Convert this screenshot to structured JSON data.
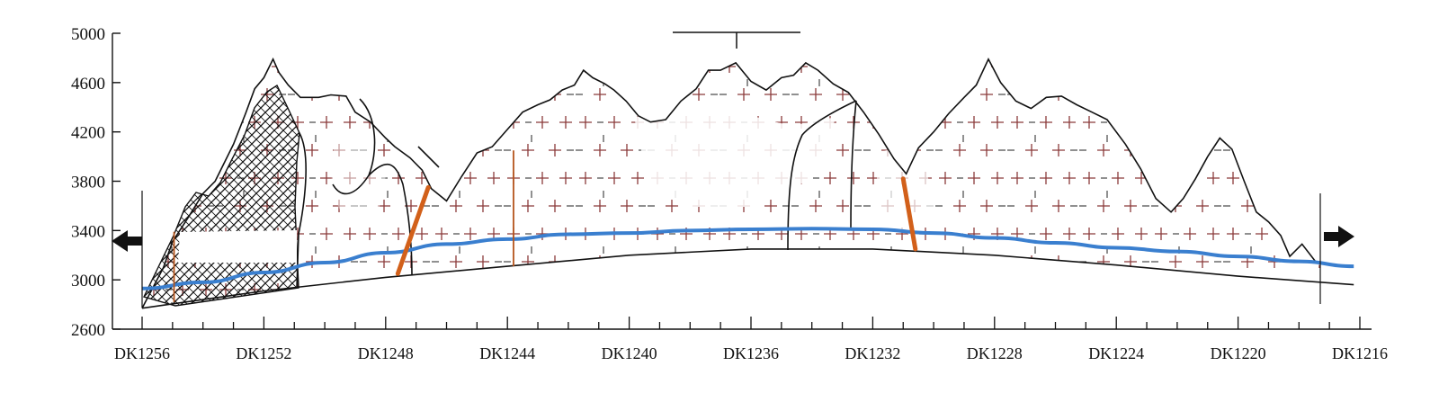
{
  "chart_data": {
    "type": "diagram",
    "y_axis": {
      "ticks": [
        2600,
        3000,
        3400,
        3800,
        4200,
        4600,
        5000
      ],
      "range": [
        2600,
        5000
      ]
    },
    "x_axis": {
      "ticks": [
        "DK1256",
        "DK1252",
        "DK1248",
        "DK1244",
        "DK1240",
        "DK1236",
        "DK1232",
        "DK1228",
        "DK1224",
        "DK1220",
        "DK1216"
      ],
      "range": [
        1256,
        1216
      ],
      "direction": "decreasing"
    },
    "ground_surface": [
      [
        1256.0,
        2770
      ],
      [
        1255.3,
        3100
      ],
      [
        1255.0,
        3310
      ],
      [
        1254.5,
        3500
      ],
      [
        1254.0,
        3700
      ],
      [
        1253.6,
        3800
      ],
      [
        1253.0,
        4100
      ],
      [
        1252.6,
        4350
      ],
      [
        1252.3,
        4550
      ],
      [
        1252.0,
        4640
      ],
      [
        1251.7,
        4790
      ],
      [
        1251.5,
        4680
      ],
      [
        1251.2,
        4580
      ],
      [
        1250.8,
        4480
      ],
      [
        1250.2,
        4480
      ],
      [
        1249.8,
        4500
      ],
      [
        1249.3,
        4490
      ],
      [
        1249.0,
        4360
      ],
      [
        1248.5,
        4280
      ],
      [
        1248.0,
        4150
      ],
      [
        1247.7,
        4080
      ],
      [
        1247.2,
        3990
      ],
      [
        1246.8,
        3890
      ],
      [
        1246.5,
        3740
      ],
      [
        1246.0,
        3640
      ],
      [
        1245.5,
        3840
      ],
      [
        1245.0,
        4030
      ],
      [
        1244.5,
        4080
      ],
      [
        1244.0,
        4220
      ],
      [
        1243.5,
        4360
      ],
      [
        1243.0,
        4420
      ],
      [
        1242.6,
        4460
      ],
      [
        1242.2,
        4540
      ],
      [
        1241.8,
        4580
      ],
      [
        1241.5,
        4700
      ],
      [
        1241.2,
        4640
      ],
      [
        1240.8,
        4590
      ],
      [
        1240.5,
        4540
      ],
      [
        1240.1,
        4450
      ],
      [
        1239.7,
        4330
      ],
      [
        1239.3,
        4280
      ],
      [
        1238.8,
        4300
      ],
      [
        1238.3,
        4450
      ],
      [
        1237.8,
        4550
      ],
      [
        1237.4,
        4700
      ],
      [
        1237.0,
        4700
      ],
      [
        1236.5,
        4760
      ],
      [
        1236.0,
        4610
      ],
      [
        1235.5,
        4540
      ],
      [
        1235.0,
        4640
      ],
      [
        1234.6,
        4660
      ],
      [
        1234.2,
        4760
      ],
      [
        1233.8,
        4700
      ],
      [
        1233.3,
        4590
      ],
      [
        1232.8,
        4520
      ],
      [
        1232.3,
        4360
      ],
      [
        1231.8,
        4180
      ],
      [
        1231.3,
        3980
      ],
      [
        1230.9,
        3860
      ],
      [
        1230.5,
        4070
      ],
      [
        1230.0,
        4200
      ],
      [
        1229.5,
        4350
      ],
      [
        1229.0,
        4480
      ],
      [
        1228.6,
        4580
      ],
      [
        1228.2,
        4790
      ],
      [
        1227.8,
        4600
      ],
      [
        1227.3,
        4450
      ],
      [
        1226.8,
        4390
      ],
      [
        1226.3,
        4480
      ],
      [
        1225.8,
        4490
      ],
      [
        1225.3,
        4420
      ],
      [
        1224.8,
        4360
      ],
      [
        1224.3,
        4300
      ],
      [
        1223.7,
        4100
      ],
      [
        1223.2,
        3900
      ],
      [
        1222.7,
        3660
      ],
      [
        1222.2,
        3550
      ],
      [
        1221.8,
        3660
      ],
      [
        1221.4,
        3820
      ],
      [
        1221.0,
        4000
      ],
      [
        1220.6,
        4150
      ],
      [
        1220.2,
        4060
      ],
      [
        1219.8,
        3800
      ],
      [
        1219.4,
        3550
      ],
      [
        1219.0,
        3470
      ],
      [
        1218.6,
        3360
      ],
      [
        1218.3,
        3190
      ],
      [
        1217.9,
        3290
      ],
      [
        1217.4,
        3130
      ]
    ],
    "tunnel_line": [
      [
        1256.0,
        2930
      ],
      [
        1254.0,
        2980
      ],
      [
        1252.0,
        3060
      ],
      [
        1250.0,
        3140
      ],
      [
        1248.0,
        3220
      ],
      [
        1246.0,
        3290
      ],
      [
        1244.0,
        3330
      ],
      [
        1242.0,
        3370
      ],
      [
        1240.0,
        3380
      ],
      [
        1238.0,
        3400
      ],
      [
        1236.0,
        3410
      ],
      [
        1234.0,
        3415
      ],
      [
        1232.0,
        3410
      ],
      [
        1230.0,
        3380
      ],
      [
        1228.0,
        3340
      ],
      [
        1226.0,
        3300
      ],
      [
        1224.0,
        3260
      ],
      [
        1222.0,
        3230
      ],
      [
        1220.0,
        3190
      ],
      [
        1218.0,
        3150
      ],
      [
        1216.2,
        3110
      ]
    ],
    "tunnel_base": [
      [
        1256.0,
        2770
      ],
      [
        1252.0,
        2910
      ],
      [
        1248.0,
        3020
      ],
      [
        1244.0,
        3110
      ],
      [
        1240.0,
        3200
      ],
      [
        1236.0,
        3250
      ],
      [
        1232.0,
        3250
      ],
      [
        1228.0,
        3200
      ],
      [
        1224.0,
        3120
      ],
      [
        1220.0,
        3030
      ],
      [
        1216.2,
        2960
      ]
    ],
    "faults": [
      {
        "top": [
          1246.6,
          3750
        ],
        "bottom": [
          1247.6,
          3050
        ]
      },
      {
        "top": [
          1231.0,
          3820
        ],
        "bottom": [
          1230.6,
          3250
        ]
      }
    ],
    "thin_contacts": [
      {
        "top": [
          1254.95,
          3390
        ],
        "bottom": [
          1254.95,
          2820
        ]
      },
      {
        "top": [
          1243.8,
          4050
        ],
        "bottom": [
          1243.8,
          3110
        ]
      }
    ],
    "portals": [
      "left",
      "right"
    ]
  }
}
